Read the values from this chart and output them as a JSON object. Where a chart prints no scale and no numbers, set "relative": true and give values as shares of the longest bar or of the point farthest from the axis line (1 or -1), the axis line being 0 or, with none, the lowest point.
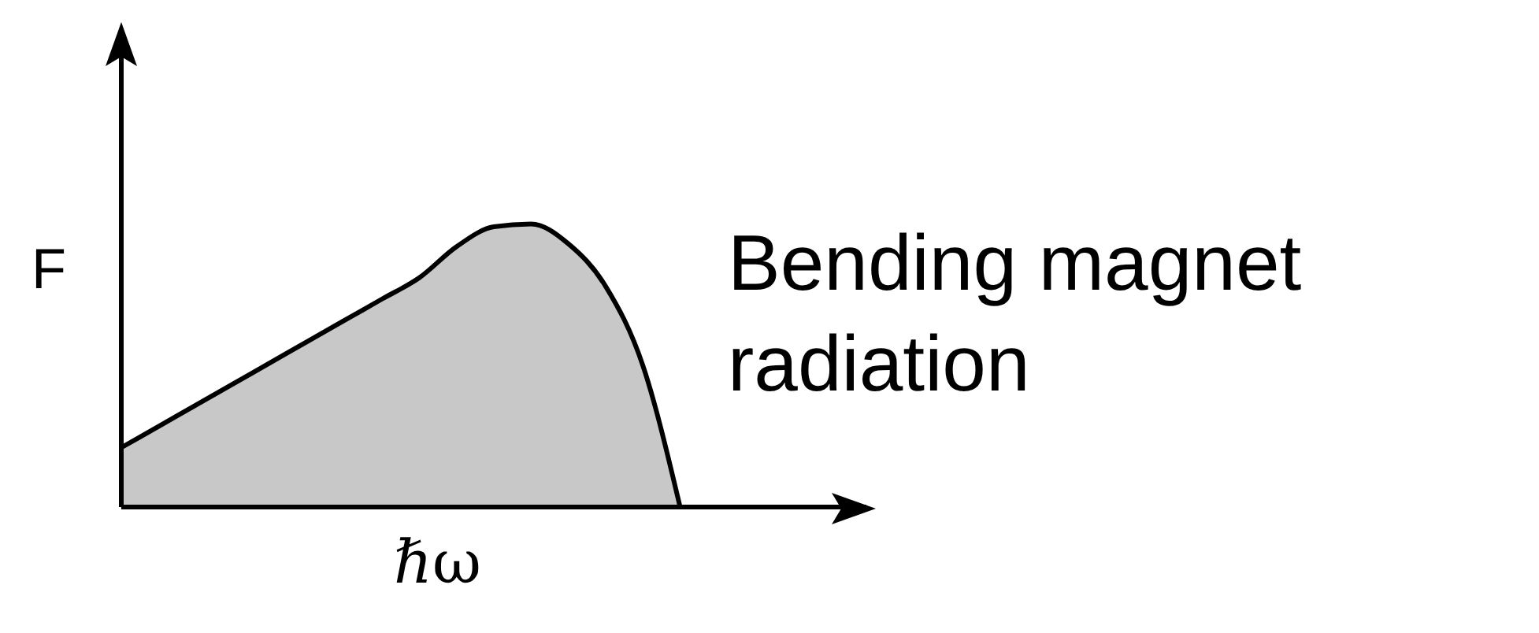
{
  "chart_data": {
    "type": "area",
    "relative": true,
    "xlabel": "ℏω",
    "ylabel": "F",
    "categories": [
      null,
      null,
      null,
      null,
      null,
      null,
      null,
      null,
      null,
      null,
      null,
      null,
      null,
      null,
      null,
      null,
      null,
      null,
      null,
      null,
      null
    ],
    "series": [
      {
        "color": "#c8c8c8",
        "values": [
          0.21,
          0.285,
          0.36,
          0.435,
          0.51,
          0.585,
          0.66,
          0.735,
          0.81,
          0.92,
          0.99,
          1,
          0.93,
          0.78,
          0.5,
          0,
          null,
          null,
          null,
          null,
          null
        ]
      }
    ],
    "annotations": [
      "Bending magnet radiation"
    ]
  }
}
